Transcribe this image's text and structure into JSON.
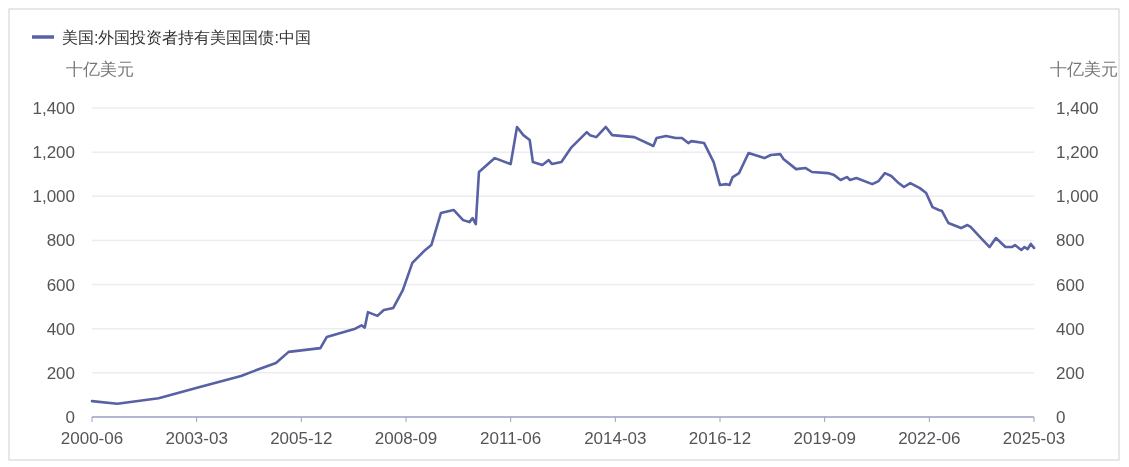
{
  "chart_data": {
    "type": "line",
    "ylabel": "十亿美元",
    "y2label": "十亿美元",
    "xlim": [
      "2000-06",
      "2025-03"
    ],
    "xticks": [
      "2000-06",
      "2003-03",
      "2005-12",
      "2008-09",
      "2011-06",
      "2014-03",
      "2016-12",
      "2019-09",
      "2022-06",
      "2025-03"
    ],
    "ylim": [
      0,
      1400
    ],
    "yticks": [
      0,
      {
        "value": 200,
        "label": "200"
      },
      {
        "value": 400,
        "label": "400"
      },
      {
        "value": 600,
        "label": "600"
      },
      {
        "value": 800,
        "label": "800"
      },
      {
        "value": 1000,
        "label": "1,000"
      },
      {
        "value": 1200,
        "label": "1,200"
      },
      {
        "value": 1400,
        "label": "1,400"
      }
    ],
    "y2lim": [
      0,
      1400
    ],
    "y2ticks": [
      0,
      {
        "value": 200,
        "label": "200"
      },
      {
        "value": 400,
        "label": "400"
      },
      {
        "value": 600,
        "label": "600"
      },
      {
        "value": 800,
        "label": "800"
      },
      {
        "value": 1000,
        "label": "1,000"
      },
      {
        "value": 1200,
        "label": "1,200"
      },
      {
        "value": 1400,
        "label": "1,400"
      }
    ],
    "grid": "y",
    "legend": "top left",
    "marker": "none",
    "line_style": "solid",
    "series": [
      {
        "name": "美国:外国投资者持有美国国债:中国",
        "color": "#5861a3",
        "x": [
          "2000-06",
          "2001-02",
          "2002-03",
          "2003-04",
          "2004-05",
          "2004-09",
          "2005-04",
          "2005-08",
          "2006-06",
          "2006-08",
          "2007-05",
          "2007-07",
          "2007-08",
          "2007-09",
          "2007-12",
          "2008-02",
          "2008-05",
          "2008-08",
          "2008-11",
          "2009-03",
          "2009-05",
          "2009-08",
          "2009-12",
          "2010-03",
          "2010-05",
          "2010-06",
          "2010-07",
          "2010-08",
          "2011-01",
          "2011-06",
          "2011-08",
          "2011-10",
          "2011-12",
          "2012-01",
          "2012-04",
          "2012-06",
          "2012-07",
          "2012-10",
          "2013-01",
          "2013-06",
          "2013-07",
          "2013-09",
          "2013-12",
          "2014-02",
          "2014-09",
          "2015-03",
          "2015-04",
          "2015-07",
          "2015-10",
          "2015-12",
          "2016-02",
          "2016-03",
          "2016-07",
          "2016-10",
          "2016-12",
          "2017-02",
          "2017-03",
          "2017-04",
          "2017-06",
          "2017-09",
          "2017-11",
          "2018-02",
          "2018-04",
          "2018-07",
          "2018-08",
          "2018-12",
          "2019-03",
          "2019-05",
          "2019-10",
          "2019-12",
          "2020-02",
          "2020-04",
          "2020-05",
          "2020-07",
          "2020-12",
          "2021-02",
          "2021-04",
          "2021-06",
          "2021-08",
          "2021-10",
          "2021-12",
          "2022-03",
          "2022-05",
          "2022-07",
          "2022-09",
          "2022-10",
          "2022-12",
          "2023-04",
          "2023-06",
          "2023-07",
          "2023-10",
          "2024-01",
          "2024-03",
          "2024-06",
          "2024-08",
          "2024-09",
          "2024-11",
          "2024-12",
          "2025-01",
          "2025-02",
          "2025-03"
        ],
        "values": [
          72,
          60,
          85,
          136,
          186,
          208,
          245,
          295,
          312,
          362,
          400,
          415,
          405,
          475,
          458,
          485,
          494,
          575,
          698,
          756,
          779,
          924,
          938,
          892,
          883,
          901,
          874,
          1110,
          1173,
          1146,
          1314,
          1277,
          1255,
          1155,
          1142,
          1164,
          1146,
          1155,
          1219,
          1291,
          1277,
          1268,
          1314,
          1277,
          1268,
          1228,
          1264,
          1273,
          1264,
          1264,
          1241,
          1250,
          1241,
          1155,
          1051,
          1055,
          1051,
          1087,
          1105,
          1196,
          1187,
          1173,
          1187,
          1191,
          1169,
          1123,
          1128,
          1110,
          1105,
          1096,
          1074,
          1087,
          1074,
          1083,
          1055,
          1069,
          1105,
          1092,
          1064,
          1042,
          1060,
          1037,
          1015,
          951,
          938,
          933,
          879,
          856,
          870,
          861,
          815,
          770,
          811,
          770,
          770,
          779,
          757,
          770,
          761,
          784,
          766
        ]
      }
    ]
  }
}
